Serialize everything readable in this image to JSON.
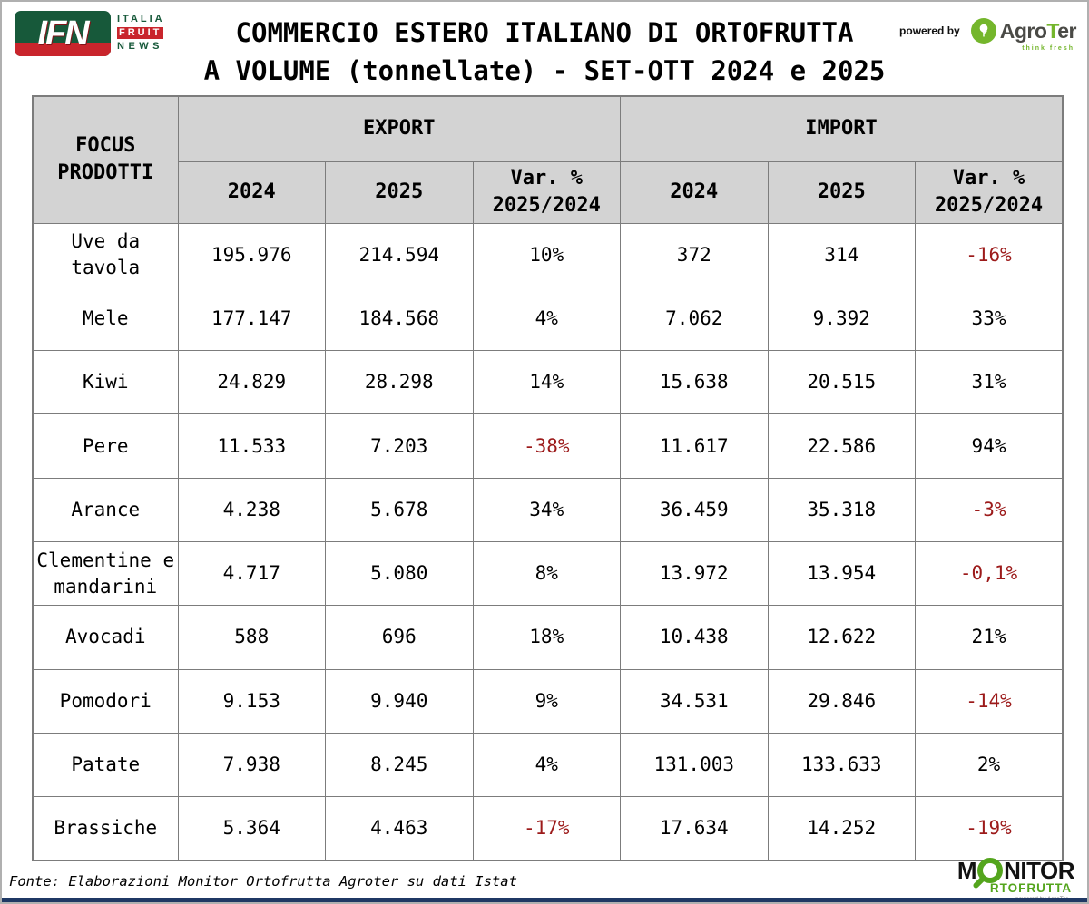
{
  "page": {
    "title_line1": "COMMERCIO ESTERO ITALIANO DI ORTOFRUTTA",
    "title_line2": "A VOLUME (tonnellate) - SET-OTT 2024 e 2025"
  },
  "branding": {
    "ifn": {
      "acronym": "IFN",
      "line1": "ITALIA",
      "line2": "FRUIT",
      "line3": "NEWS"
    },
    "powered_by": "powered by",
    "agroter": {
      "name_part1": "Agro",
      "name_part2": "T",
      "name_part3": "er",
      "tagline": "think fresh"
    },
    "monitor": {
      "part1": "M",
      "part2": "NITOR",
      "line2": "RTOFRUTTA",
      "powered": "powered by AgroTer"
    }
  },
  "table": {
    "corner_header": "FOCUS PRODOTTI",
    "group_headers": [
      "EXPORT",
      "IMPORT"
    ],
    "sub_headers": [
      "2024",
      "2025",
      "Var. % 2025/2024"
    ],
    "rows": [
      {
        "product": "Uve da tavola",
        "cells": [
          "195.976",
          "214.594",
          "10%",
          "372",
          "314",
          "-16%"
        ]
      },
      {
        "product": "Mele",
        "cells": [
          "177.147",
          "184.568",
          "4%",
          "7.062",
          "9.392",
          "33%"
        ]
      },
      {
        "product": "Kiwi",
        "cells": [
          "24.829",
          "28.298",
          "14%",
          "15.638",
          "20.515",
          "31%"
        ]
      },
      {
        "product": "Pere",
        "cells": [
          "11.533",
          "7.203",
          "-38%",
          "11.617",
          "22.586",
          "94%"
        ]
      },
      {
        "product": "Arance",
        "cells": [
          "4.238",
          "5.678",
          "34%",
          "36.459",
          "35.318",
          "-3%"
        ]
      },
      {
        "product": "Clementine e mandarini",
        "cells": [
          "4.717",
          "5.080",
          "8%",
          "13.972",
          "13.954",
          "-0,1%"
        ]
      },
      {
        "product": "Avocadi",
        "cells": [
          "588",
          "696",
          "18%",
          "10.438",
          "12.622",
          "21%"
        ]
      },
      {
        "product": "Pomodori",
        "cells": [
          "9.153",
          "9.940",
          "9%",
          "34.531",
          "29.846",
          "-14%"
        ]
      },
      {
        "product": "Patate",
        "cells": [
          "7.938",
          "8.245",
          "4%",
          "131.003",
          "133.633",
          "2%"
        ]
      },
      {
        "product": "Brassiche",
        "cells": [
          "5.364",
          "4.463",
          "-17%",
          "17.634",
          "14.252",
          "-19%"
        ]
      }
    ]
  },
  "footer": {
    "source": "Fonte: Elaborazioni Monitor Ortofrutta Agroter su dati Istat"
  },
  "colors": {
    "negative_value": "#9c1a1a",
    "header_background": "#d3d3d3",
    "table_border": "#7c7c7c",
    "ifn_green": "#17593a",
    "ifn_red": "#c9252c",
    "agroter_green": "#74b62c",
    "monitor_green": "#54a51d",
    "bottom_bar": "#1f3864"
  },
  "chart_data": {
    "type": "table",
    "title": "COMMERCIO ESTERO ITALIANO DI ORTOFRUTTA A VOLUME (tonnellate) - SET-OTT 2024 e 2025",
    "unit": "tonnellate",
    "period": "SET-OTT 2024 e 2025",
    "columns": [
      "FOCUS PRODOTTI",
      "EXPORT 2024",
      "EXPORT 2025",
      "EXPORT Var. % 2025/2024",
      "IMPORT 2024",
      "IMPORT 2025",
      "IMPORT Var. % 2025/2024"
    ],
    "rows": [
      [
        "Uve da tavola",
        195976,
        214594,
        "10%",
        372,
        314,
        "-16%"
      ],
      [
        "Mele",
        177147,
        184568,
        "4%",
        7062,
        9392,
        "33%"
      ],
      [
        "Kiwi",
        24829,
        28298,
        "14%",
        15638,
        20515,
        "31%"
      ],
      [
        "Pere",
        11533,
        7203,
        "-38%",
        11617,
        22586,
        "94%"
      ],
      [
        "Arance",
        4238,
        5678,
        "34%",
        36459,
        35318,
        "-3%"
      ],
      [
        "Clementine e mandarini",
        4717,
        5080,
        "8%",
        13972,
        13954,
        "-0,1%"
      ],
      [
        "Avocadi",
        588,
        696,
        "18%",
        10438,
        12622,
        "21%"
      ],
      [
        "Pomodori",
        9153,
        9940,
        "9%",
        34531,
        29846,
        "-14%"
      ],
      [
        "Patate",
        7938,
        8245,
        "4%",
        131003,
        133633,
        "2%"
      ],
      [
        "Brassiche",
        5364,
        4463,
        "-17%",
        17634,
        14252,
        "-19%"
      ]
    ],
    "source": "Fonte: Elaborazioni Monitor Ortofrutta Agroter su dati Istat"
  }
}
